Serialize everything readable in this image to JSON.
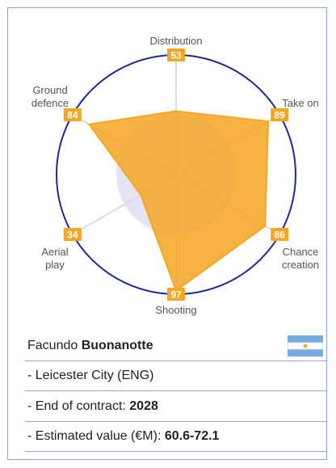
{
  "chart_data": {
    "type": "radar",
    "categories": [
      "Distribution",
      "Take on",
      "Chance creation",
      "Shooting",
      "Aerial play",
      "Ground defence"
    ],
    "values": [
      53,
      89,
      86,
      97,
      34,
      84
    ],
    "color": "#f5a623",
    "ylim": [
      0,
      100
    ]
  },
  "player": {
    "first_name": "Facundo",
    "last_name": "Buonanotte"
  },
  "details": [
    {
      "text": "- Leicester City (ENG)"
    },
    {
      "label": "- End of contract: ",
      "value": "2028"
    },
    {
      "label": "- Estimated value (€M): ",
      "value": "60.6-72.1"
    }
  ]
}
